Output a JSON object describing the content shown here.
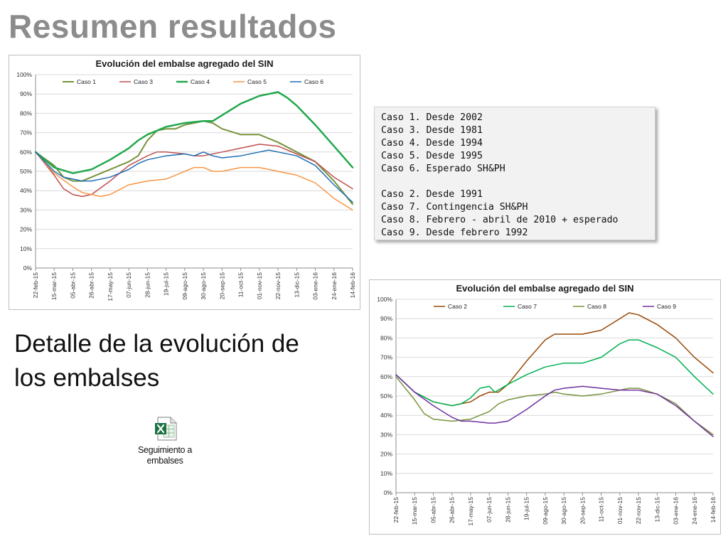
{
  "slide": {
    "title": "Resumen resultados",
    "subtitle": "Detalle de la evolución de los embalses",
    "file": {
      "icon": "excel-file-icon",
      "label_line1": "Seguimiento a",
      "label_line2": "embalses"
    },
    "notes": {
      "group1": [
        "Caso 1. Desde 2002",
        "Caso 3. Desde 1981",
        "Caso 4. Desde 1994",
        "Caso 5. Desde 1995",
        "Caso 6. Esperado SH&PH"
      ],
      "group2": [
        "Caso 2. Desde 1991",
        "Caso 7. Contingencia SH&PH",
        "Caso 8. Febrero - abril de 2010 + esperado",
        "Caso 9. Desde febrero 1992"
      ]
    }
  },
  "chart_data": [
    {
      "type": "line",
      "title": "Evolución del embalse agregado del SIN",
      "xlabel": "",
      "ylabel": "",
      "ylim": [
        0,
        1
      ],
      "y_ticks": [
        "0%",
        "10%",
        "20%",
        "30%",
        "40%",
        "50%",
        "60%",
        "70%",
        "80%",
        "90%",
        "100%"
      ],
      "x_tick_labels": [
        "22-feb-15",
        "15-mar-15",
        "05-abr-15",
        "26-abr-15",
        "17-may-15",
        "07-jun-15",
        "28-jun-15",
        "19-jul-15",
        "09-ago-15",
        "30-ago-15",
        "20-sep-15",
        "11-oct-15",
        "01-nov-15",
        "22-nov-15",
        "13-dic-15",
        "03-ene-16",
        "24-ene-16",
        "14-feb-16"
      ],
      "grid": true,
      "legend_position": "top",
      "series": [
        {
          "name": "Caso 1",
          "color": "#77933c",
          "stroke_width": 2,
          "points": [
            [
              0,
              0.6
            ],
            [
              1,
              0.53
            ],
            [
              1.5,
              0.47
            ],
            [
              2,
              0.45
            ],
            [
              2.5,
              0.45
            ],
            [
              3,
              0.47
            ],
            [
              4,
              0.51
            ],
            [
              5,
              0.55
            ],
            [
              5.5,
              0.58
            ],
            [
              6,
              0.66
            ],
            [
              6.5,
              0.71
            ],
            [
              7,
              0.72
            ],
            [
              7.5,
              0.72
            ],
            [
              8,
              0.74
            ],
            [
              8.5,
              0.75
            ],
            [
              9,
              0.76
            ],
            [
              9.5,
              0.75
            ],
            [
              10,
              0.72
            ],
            [
              11,
              0.69
            ],
            [
              12,
              0.69
            ],
            [
              13,
              0.65
            ],
            [
              14,
              0.6
            ],
            [
              15,
              0.55
            ],
            [
              16,
              0.45
            ],
            [
              17,
              0.33
            ]
          ]
        },
        {
          "name": "Caso 3",
          "color": "#c0504d",
          "stroke_width": 1.5,
          "points": [
            [
              0,
              0.6
            ],
            [
              1,
              0.48
            ],
            [
              1.5,
              0.41
            ],
            [
              2,
              0.38
            ],
            [
              2.5,
              0.37
            ],
            [
              3,
              0.38
            ],
            [
              4,
              0.45
            ],
            [
              5,
              0.53
            ],
            [
              6,
              0.58
            ],
            [
              6.5,
              0.6
            ],
            [
              7,
              0.6
            ],
            [
              8,
              0.59
            ],
            [
              8.5,
              0.58
            ],
            [
              9,
              0.58
            ],
            [
              10,
              0.6
            ],
            [
              11,
              0.62
            ],
            [
              12,
              0.64
            ],
            [
              13,
              0.63
            ],
            [
              14,
              0.59
            ],
            [
              15,
              0.55
            ],
            [
              16,
              0.47
            ],
            [
              17,
              0.41
            ]
          ]
        },
        {
          "name": "Caso 4",
          "color": "#22a84d",
          "stroke_width": 2.5,
          "points": [
            [
              0,
              0.6
            ],
            [
              1,
              0.52
            ],
            [
              2,
              0.49
            ],
            [
              3,
              0.51
            ],
            [
              4,
              0.56
            ],
            [
              5,
              0.62
            ],
            [
              5.5,
              0.66
            ],
            [
              6,
              0.69
            ],
            [
              7,
              0.73
            ],
            [
              8,
              0.75
            ],
            [
              9,
              0.76
            ],
            [
              9.5,
              0.76
            ],
            [
              10,
              0.79
            ],
            [
              11,
              0.85
            ],
            [
              12,
              0.89
            ],
            [
              13,
              0.91
            ],
            [
              13.5,
              0.88
            ],
            [
              14,
              0.84
            ],
            [
              15,
              0.74
            ],
            [
              16,
              0.63
            ],
            [
              17,
              0.52
            ]
          ]
        },
        {
          "name": "Caso 5",
          "color": "#f79646",
          "stroke_width": 1.5,
          "points": [
            [
              0,
              0.6
            ],
            [
              1,
              0.49
            ],
            [
              2,
              0.42
            ],
            [
              2.5,
              0.39
            ],
            [
              3,
              0.38
            ],
            [
              3.5,
              0.37
            ],
            [
              4,
              0.38
            ],
            [
              5,
              0.43
            ],
            [
              6,
              0.45
            ],
            [
              7,
              0.46
            ],
            [
              8,
              0.5
            ],
            [
              8.5,
              0.52
            ],
            [
              9,
              0.52
            ],
            [
              9.5,
              0.5
            ],
            [
              10,
              0.5
            ],
            [
              11,
              0.52
            ],
            [
              12,
              0.52
            ],
            [
              13,
              0.5
            ],
            [
              14,
              0.48
            ],
            [
              15,
              0.44
            ],
            [
              16,
              0.36
            ],
            [
              17,
              0.3
            ]
          ]
        },
        {
          "name": "Caso 6",
          "color": "#1f6fb5",
          "stroke_width": 1.5,
          "points": [
            [
              0,
              0.6
            ],
            [
              1,
              0.5
            ],
            [
              1.5,
              0.47
            ],
            [
              2,
              0.46
            ],
            [
              2.5,
              0.45
            ],
            [
              3,
              0.45
            ],
            [
              4,
              0.47
            ],
            [
              5,
              0.51
            ],
            [
              5.5,
              0.54
            ],
            [
              6,
              0.56
            ],
            [
              7,
              0.58
            ],
            [
              8,
              0.59
            ],
            [
              8.5,
              0.58
            ],
            [
              9,
              0.6
            ],
            [
              9.5,
              0.58
            ],
            [
              10,
              0.57
            ],
            [
              11,
              0.58
            ],
            [
              12,
              0.6
            ],
            [
              12.5,
              0.61
            ],
            [
              13,
              0.6
            ],
            [
              14,
              0.58
            ],
            [
              15,
              0.53
            ],
            [
              16,
              0.43
            ],
            [
              17,
              0.34
            ]
          ]
        }
      ]
    },
    {
      "type": "line",
      "title": "Evolución del embalse agregado del SIN",
      "xlabel": "",
      "ylabel": "",
      "ylim": [
        0,
        1
      ],
      "y_ticks": [
        "0%",
        "10%",
        "20%",
        "30%",
        "40%",
        "50%",
        "60%",
        "70%",
        "80%",
        "90%",
        "100%"
      ],
      "x_tick_labels": [
        "22-feb-15",
        "15-mar-15",
        "05-abr-15",
        "26-abr-15",
        "17-may-15",
        "07-jun-15",
        "28-jun-15",
        "19-jul-15",
        "09-ago-15",
        "30-ago-15",
        "20-sep-15",
        "11-oct-15",
        "01-nov-15",
        "22-nov-15",
        "13-dic-15",
        "03-ene-16",
        "24-ene-16",
        "14-feb-16"
      ],
      "grid": true,
      "legend_position": "top",
      "series": [
        {
          "name": "Caso 2",
          "color": "#984807",
          "stroke_width": 1.5,
          "points": [
            [
              0,
              0.61
            ],
            [
              1,
              0.52
            ],
            [
              2,
              0.47
            ],
            [
              3,
              0.45
            ],
            [
              4,
              0.47
            ],
            [
              4.5,
              0.5
            ],
            [
              5,
              0.52
            ],
            [
              5.5,
              0.52
            ],
            [
              6,
              0.56
            ],
            [
              7,
              0.68
            ],
            [
              8,
              0.79
            ],
            [
              8.5,
              0.82
            ],
            [
              9,
              0.82
            ],
            [
              10,
              0.82
            ],
            [
              11,
              0.84
            ],
            [
              12,
              0.9
            ],
            [
              12.5,
              0.93
            ],
            [
              13,
              0.92
            ],
            [
              14,
              0.87
            ],
            [
              15,
              0.8
            ],
            [
              16,
              0.7
            ],
            [
              17,
              0.62
            ]
          ]
        },
        {
          "name": "Caso 7",
          "color": "#00b050",
          "stroke_width": 1.5,
          "points": [
            [
              0,
              0.61
            ],
            [
              1,
              0.52
            ],
            [
              2,
              0.47
            ],
            [
              3,
              0.45
            ],
            [
              3.5,
              0.46
            ],
            [
              4,
              0.49
            ],
            [
              4.5,
              0.54
            ],
            [
              5,
              0.55
            ],
            [
              5.3,
              0.52
            ],
            [
              6,
              0.56
            ],
            [
              7,
              0.61
            ],
            [
              8,
              0.65
            ],
            [
              9,
              0.67
            ],
            [
              10,
              0.67
            ],
            [
              11,
              0.7
            ],
            [
              12,
              0.77
            ],
            [
              12.5,
              0.79
            ],
            [
              13,
              0.79
            ],
            [
              14,
              0.75
            ],
            [
              15,
              0.7
            ],
            [
              16,
              0.6
            ],
            [
              17,
              0.51
            ]
          ]
        },
        {
          "name": "Caso 8",
          "color": "#77933c",
          "stroke_width": 1.5,
          "points": [
            [
              0,
              0.6
            ],
            [
              1,
              0.48
            ],
            [
              1.5,
              0.41
            ],
            [
              2,
              0.38
            ],
            [
              3,
              0.37
            ],
            [
              4,
              0.38
            ],
            [
              5,
              0.42
            ],
            [
              5.5,
              0.46
            ],
            [
              6,
              0.48
            ],
            [
              7,
              0.5
            ],
            [
              8,
              0.51
            ],
            [
              8.5,
              0.52
            ],
            [
              9,
              0.51
            ],
            [
              10,
              0.5
            ],
            [
              11,
              0.51
            ],
            [
              12,
              0.53
            ],
            [
              12.5,
              0.54
            ],
            [
              13,
              0.54
            ],
            [
              14,
              0.51
            ],
            [
              15,
              0.46
            ],
            [
              16,
              0.37
            ],
            [
              17,
              0.3
            ]
          ]
        },
        {
          "name": "Caso 9",
          "color": "#7030a0",
          "stroke_width": 1.5,
          "points": [
            [
              0,
              0.61
            ],
            [
              1,
              0.52
            ],
            [
              2,
              0.45
            ],
            [
              3,
              0.39
            ],
            [
              3.5,
              0.37
            ],
            [
              4,
              0.37
            ],
            [
              5,
              0.36
            ],
            [
              5.3,
              0.36
            ],
            [
              6,
              0.37
            ],
            [
              7,
              0.43
            ],
            [
              8,
              0.5
            ],
            [
              8.5,
              0.53
            ],
            [
              9,
              0.54
            ],
            [
              10,
              0.55
            ],
            [
              11,
              0.54
            ],
            [
              12,
              0.53
            ],
            [
              13,
              0.53
            ],
            [
              14,
              0.51
            ],
            [
              15,
              0.45
            ],
            [
              16,
              0.37
            ],
            [
              17,
              0.29
            ]
          ]
        }
      ]
    }
  ]
}
